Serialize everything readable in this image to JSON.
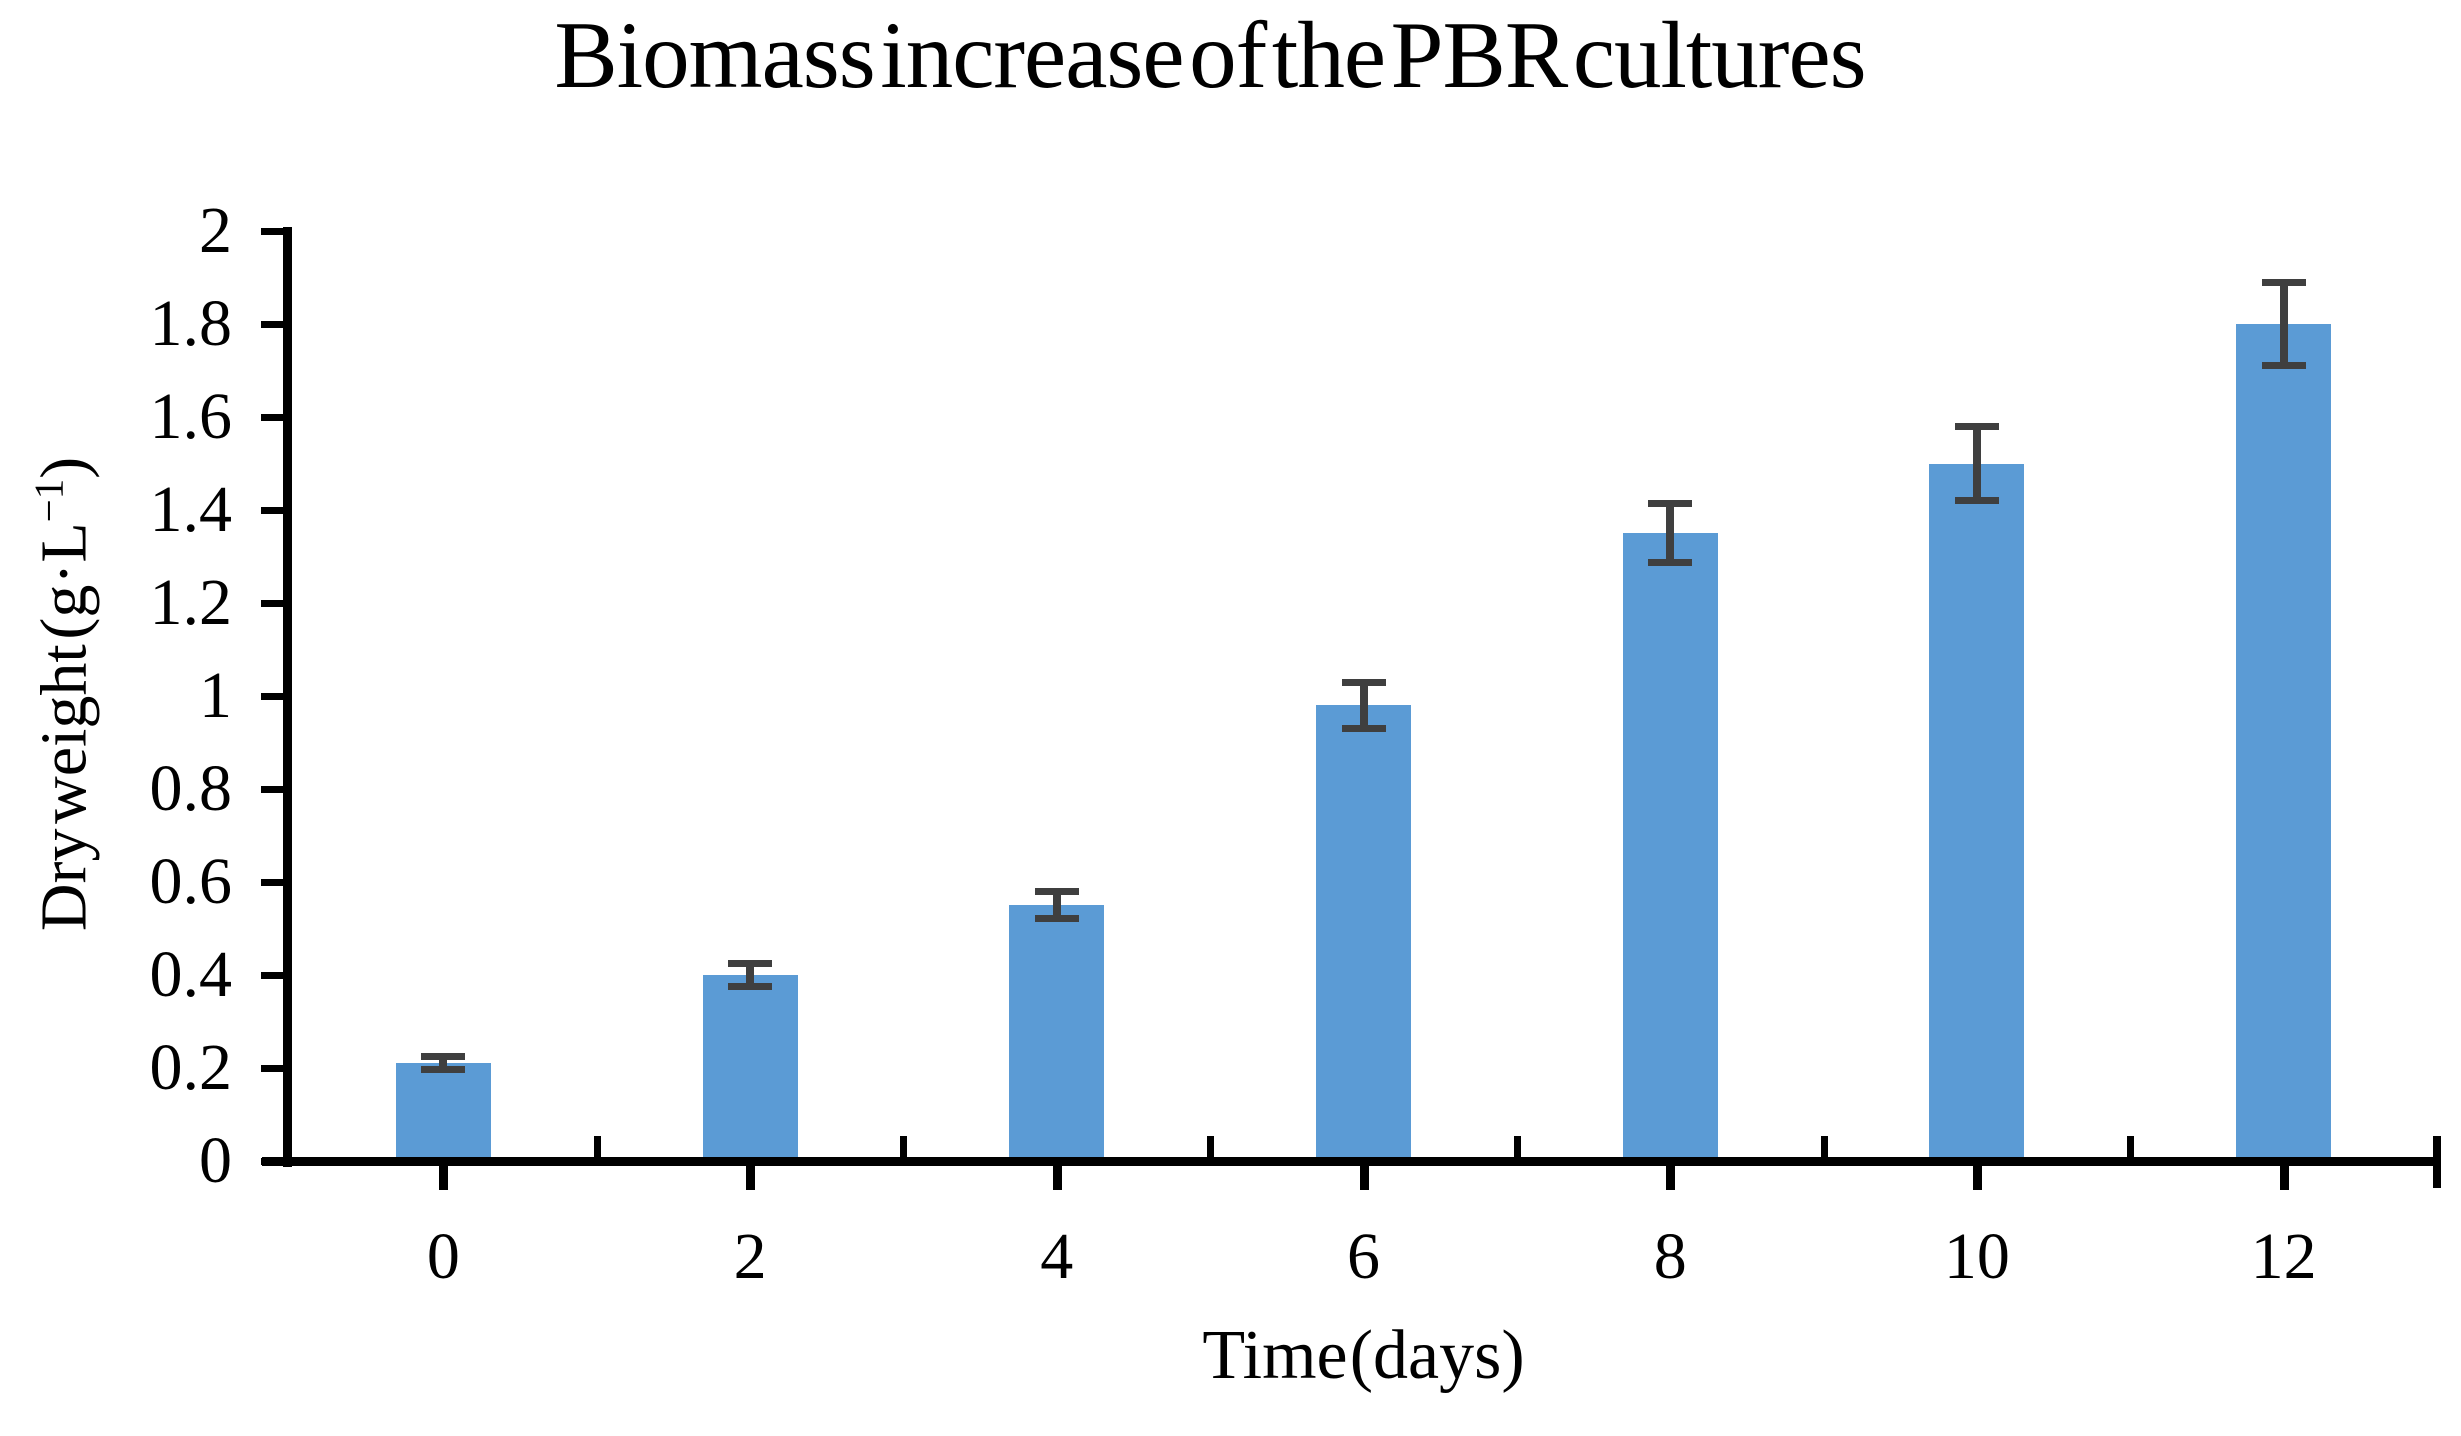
{
  "chart_data": {
    "type": "bar",
    "title": "Biomass increase of the PBR cultures",
    "xlabel": "Time (days)",
    "ylabel": "Dry weight (g·L⁻¹)",
    "categories": [
      "0",
      "2",
      "4",
      "6",
      "8",
      "10",
      "12"
    ],
    "series": [
      {
        "name": "Dry weight",
        "values": [
          0.21,
          0.4,
          0.55,
          0.98,
          1.35,
          1.5,
          1.8
        ],
        "errors": [
          0.015,
          0.025,
          0.03,
          0.05,
          0.065,
          0.08,
          0.09
        ]
      }
    ],
    "ylim": [
      0,
      2
    ],
    "ytick_values": [
      0,
      0.2,
      0.4,
      0.6,
      0.8,
      1,
      1.2,
      1.4,
      1.6,
      1.8,
      2
    ],
    "ytick_labels": [
      "0",
      "0.2",
      "0.4",
      "0.6",
      "0.8",
      "1",
      "1.2",
      "1.4",
      "1.6",
      "1.8",
      "2"
    ],
    "grid": false,
    "legend": null,
    "bar_color": "#5b9bd5",
    "error_bar_color": "#3f3f3f",
    "axis_color": "#000000",
    "background_color": "#ffffff"
  },
  "labels": {
    "ylabel_prefix": "Dry weight (g·L",
    "ylabel_sup": "−1",
    "ylabel_suffix": ")"
  }
}
